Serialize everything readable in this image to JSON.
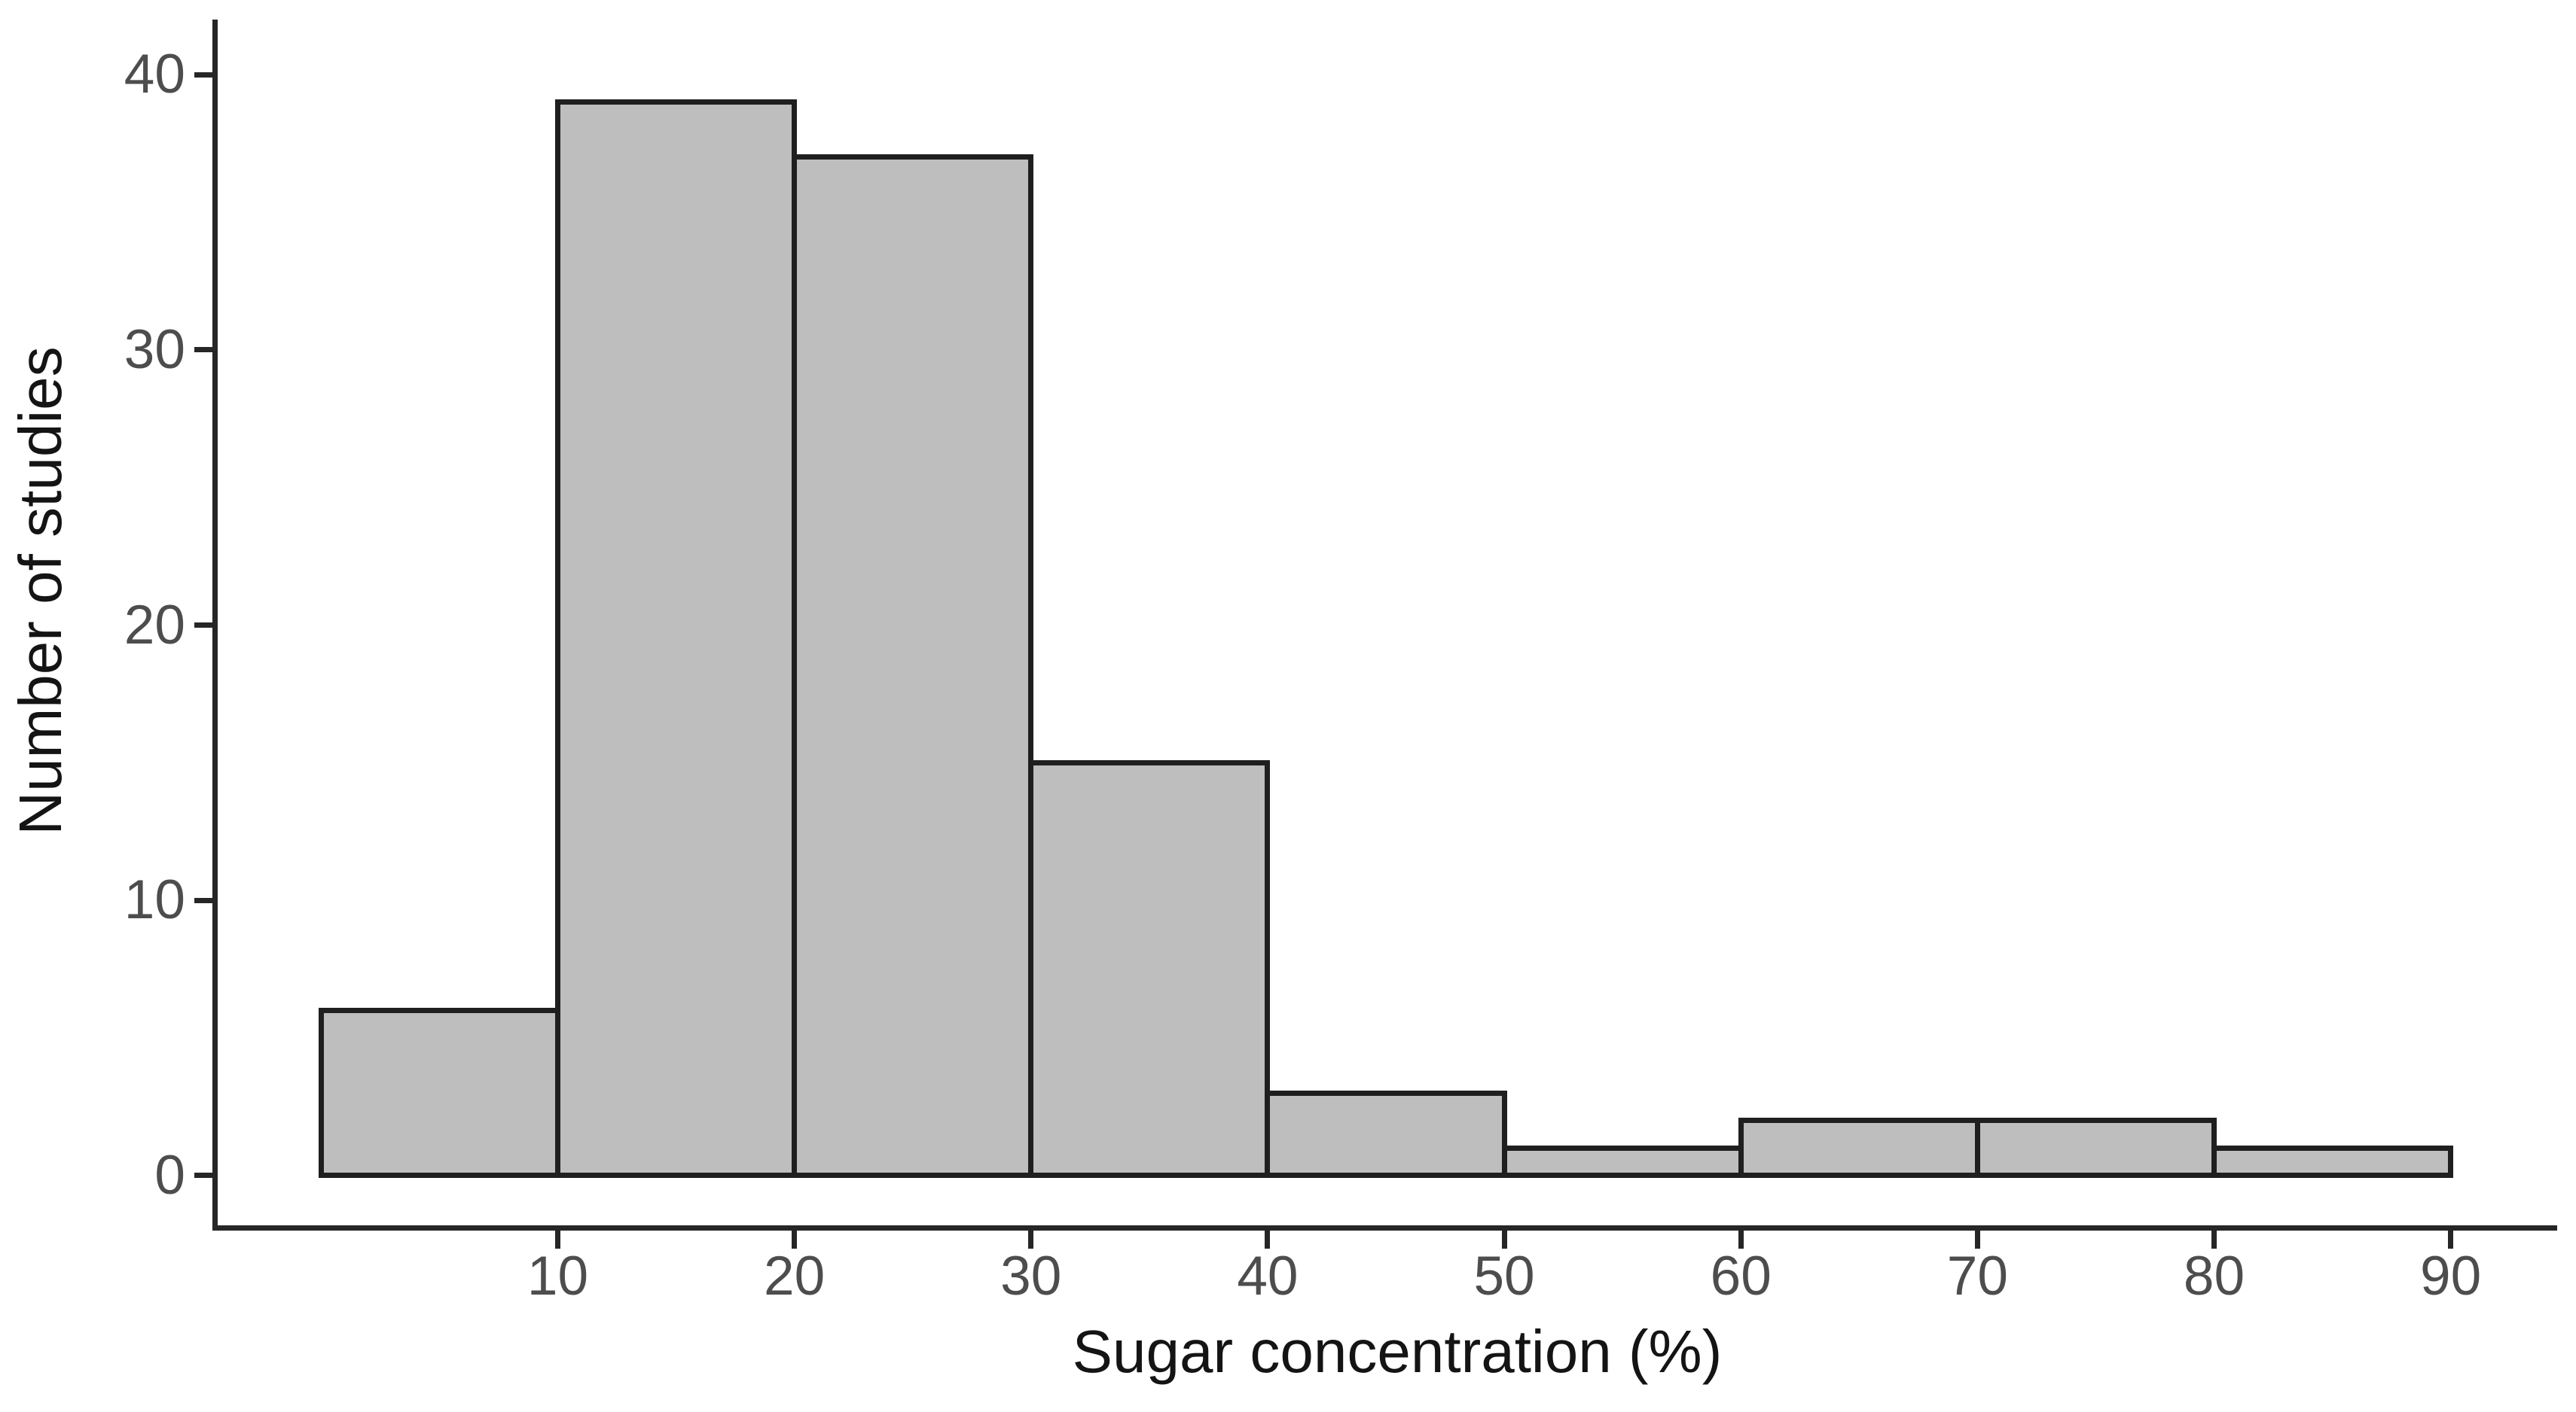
{
  "chart_data": {
    "type": "bar",
    "subtype": "histogram",
    "title": "",
    "xlabel": "Sugar concentration (%)",
    "ylabel": "Number of studies",
    "bin_edges": [
      0,
      10,
      20,
      30,
      40,
      50,
      60,
      70,
      80,
      90
    ],
    "counts": [
      6,
      39,
      37,
      15,
      3,
      1,
      2,
      2,
      1
    ],
    "x_tick_values": [
      10,
      20,
      30,
      40,
      50,
      60,
      70,
      80,
      90
    ],
    "x_tick_labels": [
      "10",
      "20",
      "30",
      "40",
      "50",
      "60",
      "70",
      "80",
      "90"
    ],
    "y_tick_values": [
      0,
      10,
      20,
      30,
      40
    ],
    "y_tick_labels": [
      "0",
      "10",
      "20",
      "30",
      "40"
    ],
    "xlim": [
      -4.5,
      94.5
    ],
    "ylim": [
      -2,
      42
    ],
    "grid": false,
    "legend": false,
    "colors": {
      "bar_fill": "#bebebe",
      "bar_border": "#1f1f1f",
      "axis_line": "#262626",
      "tick_label": "#4d4d4d",
      "axis_title": "#141414",
      "background": "#ffffff"
    }
  }
}
